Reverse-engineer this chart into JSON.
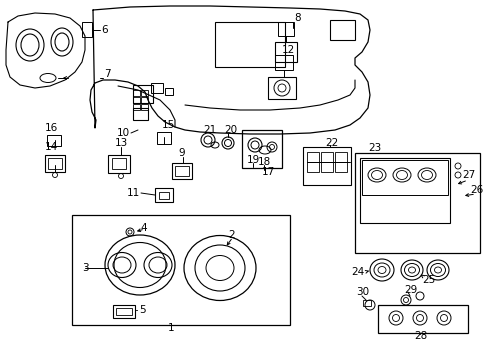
{
  "bg_color": "#ffffff",
  "line_color": "#000000",
  "fig_width": 4.89,
  "fig_height": 3.6,
  "dpi": 100,
  "label_fontsize": 7.5
}
